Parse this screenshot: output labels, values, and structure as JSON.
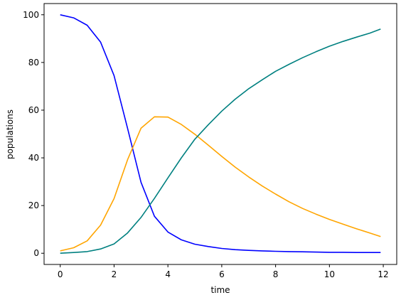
{
  "chart_data": {
    "type": "line",
    "title": "",
    "xlabel": "time",
    "ylabel": "populations",
    "xlim": [
      -0.6,
      12.5
    ],
    "ylim": [
      -4.7,
      104.7
    ],
    "xticks": [
      0,
      2,
      4,
      6,
      8,
      10,
      12
    ],
    "yticks": [
      0,
      20,
      40,
      60,
      80,
      100
    ],
    "grid": false,
    "legend": "none",
    "x": [
      0,
      0.5,
      1,
      1.5,
      2,
      2.5,
      3,
      3.5,
      4,
      4.5,
      5,
      5.5,
      6,
      6.5,
      7,
      7.5,
      8,
      8.5,
      9,
      9.5,
      10,
      10.5,
      11,
      11.5,
      11.9
    ],
    "series": [
      {
        "color": "#0000ff",
        "values": [
          100,
          98.7,
          95.6,
          88.5,
          74.5,
          52.4,
          29.8,
          15.5,
          8.9,
          5.6,
          3.8,
          2.8,
          2.0,
          1.5,
          1.2,
          1.0,
          0.8,
          0.7,
          0.6,
          0.5,
          0.4,
          0.4,
          0.3,
          0.3,
          0.3
        ]
      },
      {
        "color": "#ffa500",
        "values": [
          1.0,
          2.3,
          5.2,
          11.8,
          22.9,
          39.2,
          52.4,
          57.2,
          57.1,
          54.0,
          49.9,
          45.3,
          40.6,
          36.1,
          32.0,
          28.2,
          24.8,
          21.6,
          18.8,
          16.4,
          14.2,
          12.2,
          10.3,
          8.5,
          7.0
        ]
      },
      {
        "color": "#008080",
        "values": [
          0,
          0.3,
          0.7,
          1.8,
          3.9,
          8.5,
          15.0,
          23.0,
          31.6,
          40.0,
          47.8,
          53.9,
          59.6,
          64.6,
          69.0,
          72.7,
          76.3,
          79.2,
          82.0,
          84.5,
          86.8,
          88.8,
          90.6,
          92.3,
          94.0
        ]
      }
    ]
  }
}
